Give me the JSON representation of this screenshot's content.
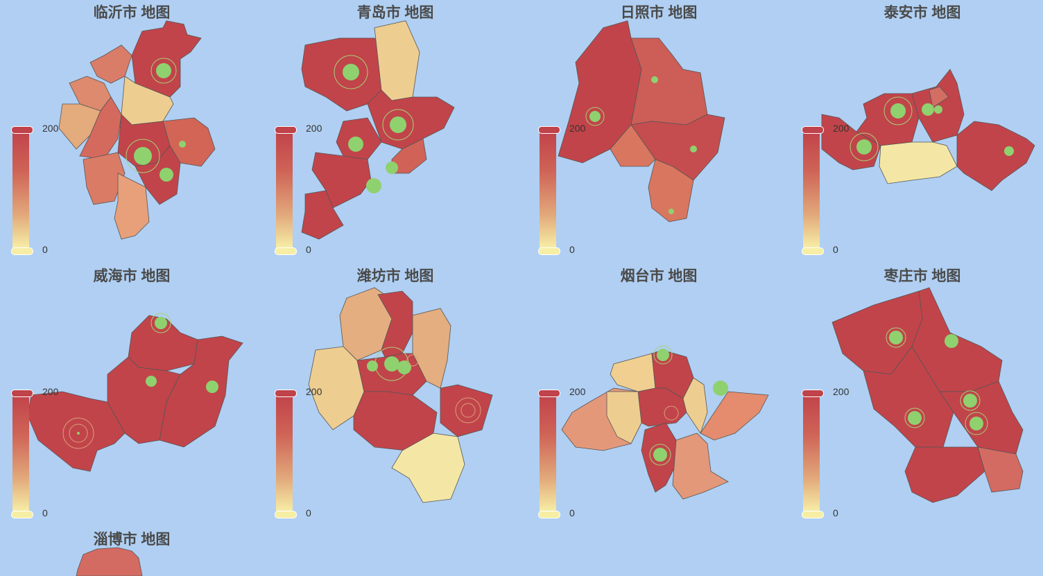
{
  "colors": {
    "background": "#b0cff2",
    "high": "#c0424a",
    "mid": "#d9705d",
    "low": "#f6eea4",
    "marker": "#8fd16f"
  },
  "legend": {
    "max": "200",
    "min": "0"
  },
  "panels": [
    {
      "title": "临沂市 地图"
    },
    {
      "title": "青岛市 地图"
    },
    {
      "title": "日照市 地图"
    },
    {
      "title": "泰安市 地图"
    },
    {
      "title": "威海市 地图"
    },
    {
      "title": "潍坊市 地图"
    },
    {
      "title": "烟台市 地图"
    },
    {
      "title": "枣庄市 地图"
    },
    {
      "title": "淄博市 地图"
    }
  ]
}
